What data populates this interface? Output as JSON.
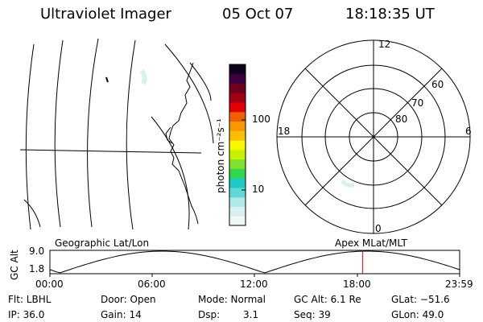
{
  "header": {
    "title": "Ultraviolet Imager",
    "date": "05 Oct 07",
    "time": "18:18:35 UT"
  },
  "colorbar": {
    "unit_label": "photon cm⁻²s⁻¹",
    "ticks": [
      "100",
      "10"
    ],
    "colors": [
      "#f0f8f8",
      "#d8f0f0",
      "#b0e8e8",
      "#60d8d8",
      "#20c8c8",
      "#30d850",
      "#80e030",
      "#c8f000",
      "#f8f800",
      "#f8c000",
      "#f89800",
      "#f06000",
      "#e00000",
      "#a00010",
      "#700020",
      "#400040",
      "#100020"
    ]
  },
  "geographic_map": {
    "label": "Geographic Lat/Lon"
  },
  "polar_plot": {
    "label": "Apex MLat/MLT",
    "mlt_labels": {
      "top": "12",
      "right": "6",
      "bottom": "0",
      "left": "18"
    },
    "lat_labels": [
      "60",
      "70",
      "80"
    ]
  },
  "altitude_plot": {
    "ylabel": "GC Alt",
    "y_ticks": [
      "9.0",
      "1.8"
    ],
    "x_ticks": [
      "00:00",
      "06:00",
      "12:00",
      "18:00",
      "23:59"
    ],
    "marker_time": "18:18",
    "marker_color": "#e00000"
  },
  "info": {
    "flt": "Flt: LBHL",
    "door": "Door: Open",
    "mode": "Mode: Normal",
    "gc_alt": "GC Alt: 6.1 Re",
    "glat": "GLat: −51.6",
    "ip": "IP: 36.0",
    "gain": "Gain: 14",
    "dsp_label": "Dsp:",
    "dsp_value": "3.1",
    "seq": "Seq: 39",
    "glon": "GLon:  49.0"
  }
}
